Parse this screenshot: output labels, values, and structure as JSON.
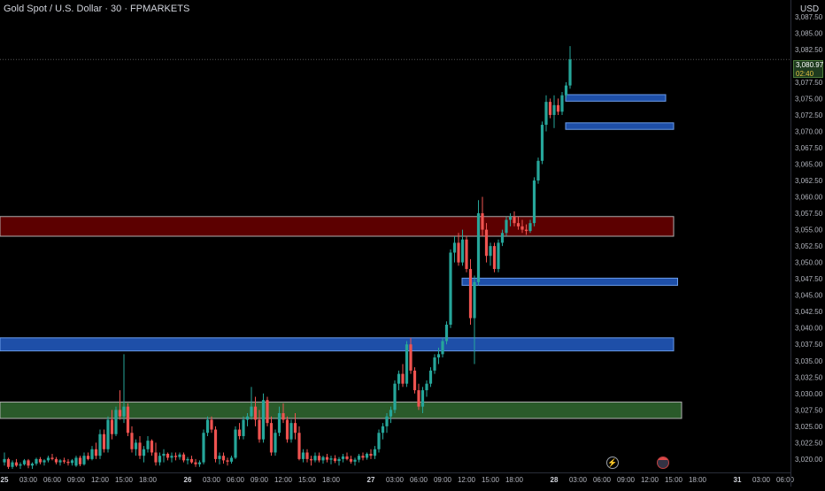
{
  "header": {
    "title": "Gold Spot / U.S. Dollar · 30 · FPMARKETS",
    "currency": "USD"
  },
  "price_tag": {
    "price": "3,080.97",
    "countdown": "02:40"
  },
  "icons": {
    "event": "lightning-icon",
    "flag": "us-flag-icon"
  },
  "chart_data": {
    "type": "candlestick",
    "symbol": "Gold Spot / U.S. Dollar",
    "interval": "30",
    "y_ticks": [
      "3,087.50",
      "3,085.00",
      "3,082.50",
      "3,080.97",
      "3,077.50",
      "3,075.00",
      "3,072.50",
      "3,070.00",
      "3,067.50",
      "3,065.00",
      "3,062.50",
      "3,060.00",
      "3,057.50",
      "3,055.00",
      "3,052.50",
      "3,050.00",
      "3,047.50",
      "3,045.00",
      "3,042.50",
      "3,040.00",
      "3,037.50",
      "3,035.00",
      "3,032.50",
      "3,030.00",
      "3,027.50",
      "3,025.00",
      "3,022.50",
      "3,020.00"
    ],
    "y_tick_values": [
      3087.5,
      3085,
      3082.5,
      null,
      3077.5,
      3075,
      3072.5,
      3070,
      3067.5,
      3065,
      3062.5,
      3060,
      3057.5,
      3055,
      3052.5,
      3050,
      3047.5,
      3045,
      3042.5,
      3040,
      3037.5,
      3035,
      3032.5,
      3030,
      3027.5,
      3025,
      3022.5,
      3020
    ],
    "x_ticks": [
      "25",
      "03:00",
      "06:00",
      "09:00",
      "12:00",
      "15:00",
      "18:00",
      "26",
      "03:00",
      "06:00",
      "09:00",
      "12:00",
      "15:00",
      "18:00",
      "27",
      "03:00",
      "06:00",
      "09:00",
      "12:00",
      "15:00",
      "18:00",
      "28",
      "03:00",
      "06:00",
      "09:00",
      "12:00",
      "15:00",
      "18:00",
      "31",
      "03:00",
      "06:00"
    ],
    "x_tick_bars": [
      0,
      6,
      12,
      18,
      24,
      30,
      36,
      46,
      52,
      58,
      64,
      70,
      76,
      82,
      92,
      98,
      104,
      110,
      116,
      122,
      128,
      138,
      144,
      150,
      156,
      162,
      168,
      174,
      184,
      190,
      196
    ],
    "ylim": [
      3018.5,
      3089.5
    ],
    "last_price": 3080.97,
    "zones": [
      {
        "color": "#1e4fa8",
        "border": "#6a9be8",
        "x_start": 142,
        "x_end": 166,
        "y_top": 3075.6,
        "y_bottom": 3074.6
      },
      {
        "color": "#1e4fa8",
        "border": "#6a9be8",
        "x_start": 142,
        "x_end": 168,
        "y_top": 3071.3,
        "y_bottom": 3070.3
      },
      {
        "color": "#5c0000",
        "border": "#b0b0b0",
        "x_start": 0,
        "x_end": 168,
        "y_top": 3057.0,
        "y_bottom": 3054.0
      },
      {
        "color": "#1e4fa8",
        "border": "#6a9be8",
        "x_start": 116,
        "x_end": 169,
        "y_top": 3047.6,
        "y_bottom": 3046.5
      },
      {
        "color": "#1e4fa8",
        "border": "#6a9be8",
        "x_start": 0,
        "x_end": 168,
        "y_top": 3038.5,
        "y_bottom": 3036.5
      },
      {
        "color": "#2a5a2a",
        "border": "#b0b0b0",
        "x_start": 0,
        "x_end": 170,
        "y_top": 3028.7,
        "y_bottom": 3026.2
      }
    ],
    "candles": [
      [
        3019.5,
        3021.0,
        3019.0,
        3020.0
      ],
      [
        3020.0,
        3020.2,
        3018.5,
        3018.8
      ],
      [
        3018.8,
        3019.8,
        3018.5,
        3019.5
      ],
      [
        3019.5,
        3020.0,
        3018.8,
        3019.0
      ],
      [
        3019.0,
        3019.5,
        3018.5,
        3019.2
      ],
      [
        3019.2,
        3020.0,
        3019.0,
        3019.8
      ],
      [
        3019.8,
        3020.0,
        3018.6,
        3019.0
      ],
      [
        3019.0,
        3019.5,
        3018.5,
        3019.3
      ],
      [
        3019.3,
        3020.2,
        3019.0,
        3020.0
      ],
      [
        3020.0,
        3020.3,
        3019.2,
        3019.5
      ],
      [
        3019.5,
        3020.0,
        3019.0,
        3019.8
      ],
      [
        3019.8,
        3020.5,
        3019.5,
        3020.2
      ],
      [
        3020.2,
        3020.8,
        3019.8,
        3020.0
      ],
      [
        3020.0,
        3020.3,
        3019.2,
        3019.5
      ],
      [
        3019.5,
        3020.0,
        3019.0,
        3019.8
      ],
      [
        3019.8,
        3020.2,
        3019.3,
        3019.6
      ],
      [
        3019.6,
        3020.0,
        3019.0,
        3019.4
      ],
      [
        3019.4,
        3020.0,
        3019.0,
        3019.8
      ],
      [
        3019.0,
        3020.5,
        3018.8,
        3020.2
      ],
      [
        3020.2,
        3020.5,
        3018.9,
        3019.2
      ],
      [
        3019.2,
        3021.0,
        3019.0,
        3020.5
      ],
      [
        3020.5,
        3021.0,
        3019.8,
        3020.0
      ],
      [
        3020.0,
        3022.0,
        3019.8,
        3021.5
      ],
      [
        3021.5,
        3022.5,
        3020.0,
        3020.5
      ],
      [
        3020.5,
        3024.5,
        3020.0,
        3023.8
      ],
      [
        3023.8,
        3024.5,
        3021.0,
        3021.5
      ],
      [
        3021.5,
        3026.5,
        3021.0,
        3026.0
      ],
      [
        3026.0,
        3027.5,
        3023.0,
        3023.8
      ],
      [
        3023.8,
        3028.0,
        3023.5,
        3027.5
      ],
      [
        3027.5,
        3030.5,
        3026.0,
        3026.5
      ],
      [
        3026.5,
        3036.0,
        3025.5,
        3028.0
      ],
      [
        3028.0,
        3028.5,
        3023.5,
        3024.0
      ],
      [
        3024.0,
        3025.0,
        3021.0,
        3021.5
      ],
      [
        3021.5,
        3023.0,
        3020.5,
        3022.5
      ],
      [
        3022.5,
        3023.5,
        3020.0,
        3020.5
      ],
      [
        3020.5,
        3022.0,
        3019.5,
        3021.5
      ],
      [
        3021.5,
        3023.5,
        3021.0,
        3022.8
      ],
      [
        3022.8,
        3023.0,
        3020.5,
        3021.0
      ],
      [
        3021.0,
        3022.5,
        3019.0,
        3019.5
      ],
      [
        3019.5,
        3021.0,
        3019.0,
        3020.5
      ],
      [
        3020.5,
        3021.5,
        3019.5,
        3020.8
      ],
      [
        3020.8,
        3021.0,
        3019.8,
        3020.2
      ],
      [
        3020.2,
        3021.0,
        3019.5,
        3020.5
      ],
      [
        3020.5,
        3021.0,
        3019.8,
        3020.3
      ],
      [
        3020.3,
        3021.0,
        3019.9,
        3020.7
      ],
      [
        3020.7,
        3021.0,
        3019.5,
        3019.8
      ],
      [
        3019.8,
        3020.3,
        3019.2,
        3020.0
      ],
      [
        3020.0,
        3020.5,
        3019.3,
        3019.5
      ],
      [
        3019.5,
        3020.0,
        3018.8,
        3019.2
      ],
      [
        3019.2,
        3019.8,
        3018.8,
        3019.5
      ],
      [
        3019.5,
        3024.5,
        3019.2,
        3024.0
      ],
      [
        3024.0,
        3026.5,
        3023.5,
        3026.0
      ],
      [
        3026.0,
        3026.5,
        3024.0,
        3024.5
      ],
      [
        3024.5,
        3025.0,
        3019.5,
        3020.0
      ],
      [
        3020.0,
        3021.0,
        3019.2,
        3020.5
      ],
      [
        3020.5,
        3021.0,
        3019.3,
        3019.8
      ],
      [
        3019.8,
        3020.2,
        3019.0,
        3019.6
      ],
      [
        3019.6,
        3020.5,
        3019.3,
        3020.2
      ],
      [
        3020.2,
        3025.0,
        3020.0,
        3024.5
      ],
      [
        3024.5,
        3025.5,
        3023.0,
        3023.5
      ],
      [
        3023.5,
        3026.5,
        3023.0,
        3026.0
      ],
      [
        3026.0,
        3027.0,
        3025.0,
        3026.5
      ],
      [
        3026.5,
        3031.0,
        3026.0,
        3028.0
      ],
      [
        3028.0,
        3029.5,
        3025.0,
        3026.0
      ],
      [
        3026.0,
        3027.5,
        3022.5,
        3023.0
      ],
      [
        3023.0,
        3030.0,
        3022.5,
        3029.0
      ],
      [
        3029.0,
        3029.5,
        3025.0,
        3025.5
      ],
      [
        3025.5,
        3026.5,
        3020.5,
        3021.0
      ],
      [
        3021.0,
        3024.5,
        3020.5,
        3024.0
      ],
      [
        3024.0,
        3028.0,
        3023.5,
        3027.0
      ],
      [
        3027.0,
        3028.5,
        3025.5,
        3026.0
      ],
      [
        3026.0,
        3026.5,
        3022.5,
        3023.0
      ],
      [
        3023.0,
        3026.0,
        3022.5,
        3025.5
      ],
      [
        3025.5,
        3027.0,
        3023.0,
        3024.0
      ],
      [
        3024.0,
        3025.0,
        3019.8,
        3020.0
      ],
      [
        3020.0,
        3021.5,
        3019.5,
        3021.0
      ],
      [
        3021.0,
        3021.5,
        3019.5,
        3020.0
      ],
      [
        3020.0,
        3020.5,
        3019.0,
        3019.8
      ],
      [
        3019.8,
        3021.0,
        3019.5,
        3020.5
      ],
      [
        3020.5,
        3021.0,
        3019.5,
        3019.8
      ],
      [
        3019.8,
        3020.5,
        3019.3,
        3020.3
      ],
      [
        3020.3,
        3020.8,
        3019.5,
        3019.9
      ],
      [
        3019.9,
        3020.5,
        3019.2,
        3020.1
      ],
      [
        3020.1,
        3020.6,
        3019.4,
        3019.7
      ],
      [
        3019.7,
        3020.3,
        3019.0,
        3020.0
      ],
      [
        3020.0,
        3020.8,
        3019.5,
        3020.4
      ],
      [
        3020.4,
        3021.0,
        3019.8,
        3020.0
      ],
      [
        3020.0,
        3020.5,
        3019.3,
        3019.6
      ],
      [
        3019.6,
        3020.2,
        3019.0,
        3019.9
      ],
      [
        3019.9,
        3020.8,
        3019.5,
        3020.5
      ],
      [
        3020.5,
        3021.0,
        3019.8,
        3020.2
      ],
      [
        3020.2,
        3021.0,
        3019.9,
        3020.8
      ],
      [
        3020.8,
        3021.5,
        3020.0,
        3020.5
      ],
      [
        3020.5,
        3022.0,
        3020.0,
        3021.5
      ],
      [
        3021.5,
        3024.5,
        3021.0,
        3024.0
      ],
      [
        3024.0,
        3025.5,
        3023.0,
        3025.0
      ],
      [
        3025.0,
        3027.0,
        3024.0,
        3026.5
      ],
      [
        3026.5,
        3028.0,
        3025.5,
        3027.5
      ],
      [
        3027.5,
        3032.0,
        3027.0,
        3031.5
      ],
      [
        3031.5,
        3033.5,
        3030.5,
        3033.0
      ],
      [
        3033.0,
        3034.5,
        3031.0,
        3031.5
      ],
      [
        3031.5,
        3038.0,
        3031.0,
        3037.5
      ],
      [
        3037.5,
        3038.5,
        3033.0,
        3033.5
      ],
      [
        3033.5,
        3034.0,
        3030.0,
        3030.5
      ],
      [
        3030.5,
        3031.5,
        3027.5,
        3028.0
      ],
      [
        3028.0,
        3031.0,
        3027.0,
        3030.5
      ],
      [
        3030.5,
        3032.0,
        3029.5,
        3031.5
      ],
      [
        3031.5,
        3034.0,
        3031.0,
        3033.5
      ],
      [
        3033.5,
        3036.0,
        3033.0,
        3035.5
      ],
      [
        3035.5,
        3037.0,
        3034.5,
        3036.0
      ],
      [
        3036.0,
        3038.5,
        3035.5,
        3038.0
      ],
      [
        3038.0,
        3041.0,
        3037.5,
        3040.5
      ],
      [
        3040.5,
        3052.0,
        3040.0,
        3051.5
      ],
      [
        3051.5,
        3054.0,
        3050.0,
        3053.0
      ],
      [
        3053.0,
        3054.5,
        3049.5,
        3050.0
      ],
      [
        3050.0,
        3055.0,
        3049.5,
        3053.5
      ],
      [
        3053.5,
        3054.0,
        3048.5,
        3049.0
      ],
      [
        3049.0,
        3050.5,
        3040.5,
        3041.5
      ],
      [
        3041.5,
        3048.0,
        3034.5,
        3047.0
      ],
      [
        3047.0,
        3059.5,
        3046.5,
        3057.5
      ],
      [
        3057.5,
        3060.0,
        3054.0,
        3055.0
      ],
      [
        3055.0,
        3056.0,
        3050.0,
        3051.0
      ],
      [
        3051.0,
        3053.0,
        3049.5,
        3052.5
      ],
      [
        3052.5,
        3053.0,
        3048.5,
        3049.0
      ],
      [
        3049.0,
        3053.5,
        3048.5,
        3053.0
      ],
      [
        3053.0,
        3055.0,
        3052.5,
        3054.5
      ],
      [
        3054.5,
        3057.0,
        3054.0,
        3056.5
      ],
      [
        3056.5,
        3057.5,
        3055.5,
        3057.0
      ],
      [
        3057.0,
        3057.8,
        3055.5,
        3056.0
      ],
      [
        3056.0,
        3057.0,
        3055.0,
        3055.5
      ],
      [
        3055.5,
        3056.5,
        3054.5,
        3055.0
      ],
      [
        3055.0,
        3055.8,
        3054.2,
        3054.8
      ],
      [
        3054.8,
        3056.5,
        3054.5,
        3056.0
      ],
      [
        3056.0,
        3063.0,
        3055.5,
        3062.5
      ],
      [
        3062.5,
        3066.0,
        3062.0,
        3065.5
      ],
      [
        3065.5,
        3071.5,
        3065.0,
        3071.0
      ],
      [
        3071.0,
        3075.5,
        3070.0,
        3074.5
      ],
      [
        3074.5,
        3075.0,
        3072.0,
        3072.5
      ],
      [
        3072.5,
        3075.5,
        3070.5,
        3074.0
      ],
      [
        3074.0,
        3075.0,
        3072.5,
        3073.0
      ],
      [
        3073.0,
        3076.0,
        3072.5,
        3075.5
      ],
      [
        3075.5,
        3077.5,
        3075.0,
        3077.0
      ],
      [
        3077.0,
        3083.0,
        3076.5,
        3080.97
      ]
    ]
  }
}
